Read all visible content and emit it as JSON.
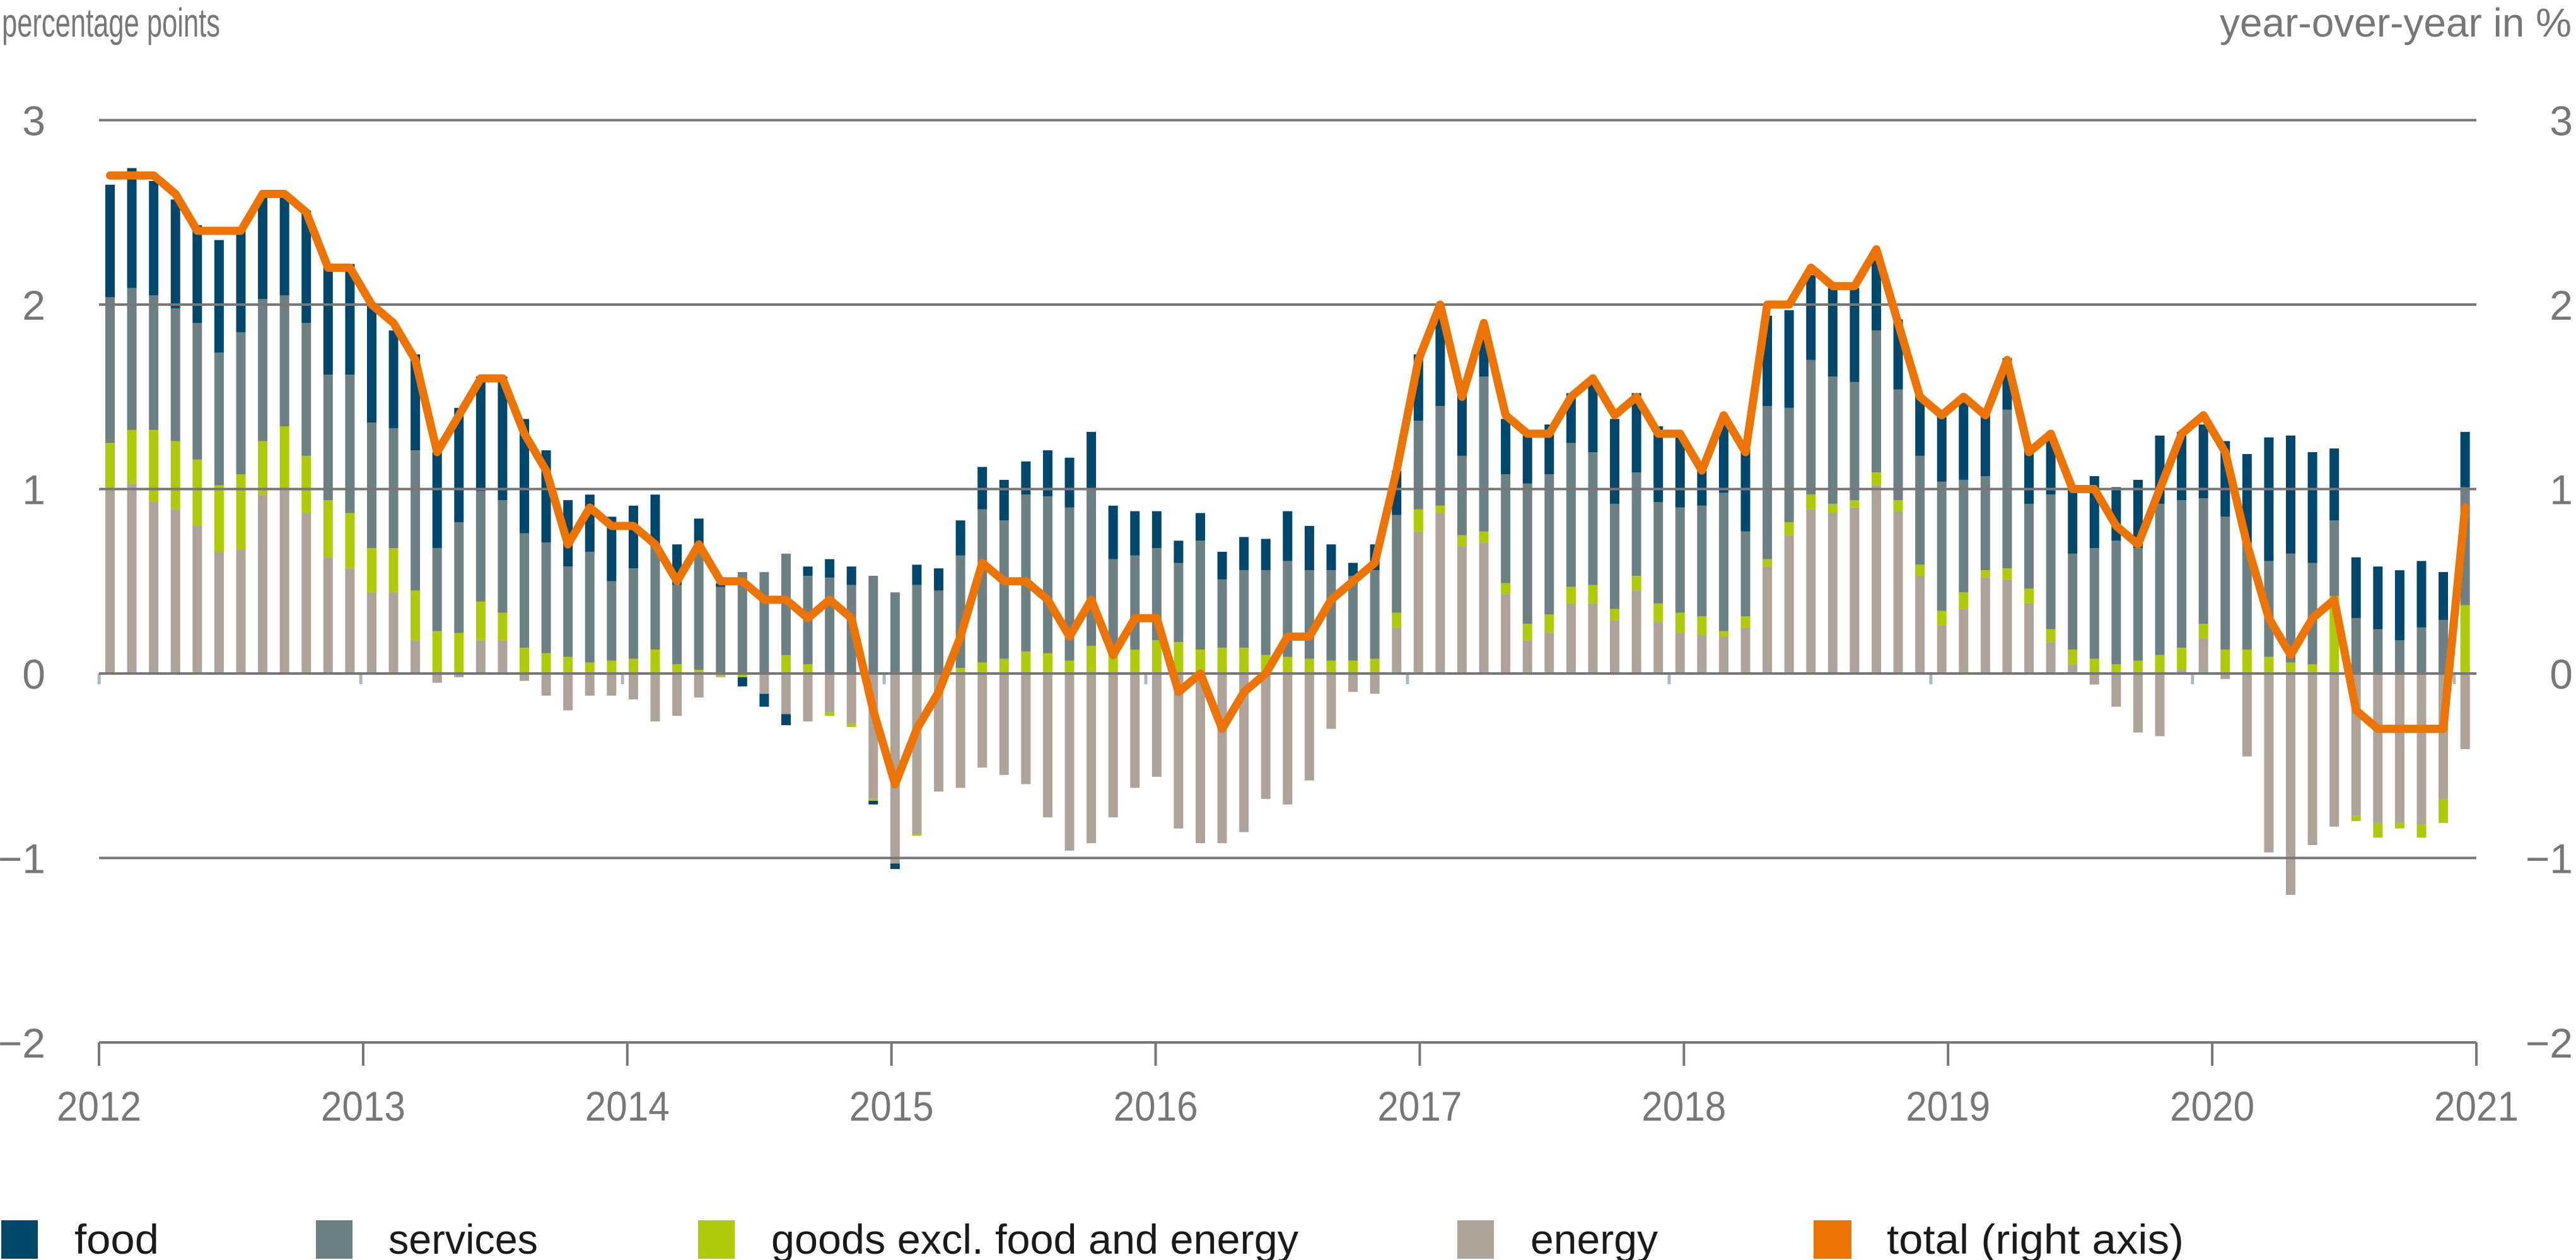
{
  "chart_data": {
    "type": "bar",
    "stacked": true,
    "title": "",
    "ylabel_left": "percentage points",
    "ylabel_right": "year-over-year in %",
    "ylim": [
      -2,
      3
    ],
    "ylim_right": [
      -2,
      3
    ],
    "ytick_values": [
      3,
      2,
      1,
      0,
      -1,
      -2
    ],
    "yticks_left": [
      "3",
      "2",
      "1",
      "0",
      "−1",
      "−2"
    ],
    "yticks_right": [
      "3",
      "2",
      "1",
      "0",
      "−1",
      "−2"
    ],
    "xlim": [
      2012,
      2021
    ],
    "xticks": [
      "2012",
      "2013",
      "2014",
      "2015",
      "2016",
      "2017",
      "2018",
      "2019",
      "2020",
      "2021"
    ],
    "grid": true,
    "legend_position": "bottom",
    "x": [
      2012.042,
      2012.125,
      2012.208,
      2012.292,
      2012.375,
      2012.458,
      2012.542,
      2012.625,
      2012.708,
      2012.792,
      2012.875,
      2012.958,
      2013.042,
      2013.125,
      2013.208,
      2013.292,
      2013.375,
      2013.458,
      2013.542,
      2013.625,
      2013.708,
      2013.792,
      2013.875,
      2013.958,
      2014.042,
      2014.125,
      2014.208,
      2014.292,
      2014.375,
      2014.458,
      2014.542,
      2014.625,
      2014.708,
      2014.792,
      2014.875,
      2014.958,
      2015.042,
      2015.125,
      2015.208,
      2015.292,
      2015.375,
      2015.458,
      2015.542,
      2015.625,
      2015.708,
      2015.792,
      2015.875,
      2015.958,
      2016.042,
      2016.125,
      2016.208,
      2016.292,
      2016.375,
      2016.458,
      2016.542,
      2016.625,
      2016.708,
      2016.792,
      2016.875,
      2016.958,
      2017.042,
      2017.125,
      2017.208,
      2017.292,
      2017.375,
      2017.458,
      2017.542,
      2017.625,
      2017.708,
      2017.792,
      2017.875,
      2017.958,
      2018.042,
      2018.125,
      2018.208,
      2018.292,
      2018.375,
      2018.458,
      2018.542,
      2018.625,
      2018.708,
      2018.792,
      2018.875,
      2018.958,
      2019.042,
      2019.125,
      2019.208,
      2019.292,
      2019.375,
      2019.458,
      2019.542,
      2019.625,
      2019.708,
      2019.792,
      2019.875,
      2019.958,
      2020.042,
      2020.125,
      2020.208,
      2020.292,
      2020.375,
      2020.458,
      2020.542,
      2020.625,
      2020.708,
      2020.792,
      2020.875,
      2020.958,
      2021.042
    ],
    "series": [
      {
        "name": "food",
        "type": "bar",
        "color": "#00476b",
        "values": [
          0.61,
          0.65,
          0.62,
          0.59,
          0.53,
          0.61,
          0.55,
          0.57,
          0.53,
          0.61,
          0.6,
          0.6,
          0.64,
          0.53,
          0.52,
          0.52,
          0.62,
          0.62,
          0.67,
          0.62,
          0.5,
          0.36,
          0.31,
          0.35,
          0.34,
          0.28,
          0.22,
          0.15,
          0.02,
          -0.05,
          -0.07,
          -0.06,
          0.05,
          0.1,
          0.1,
          -0.02,
          -0.03,
          0.11,
          0.12,
          0.19,
          0.23,
          0.22,
          0.18,
          0.25,
          0.27,
          0.31,
          0.29,
          0.24,
          0.2,
          0.12,
          0.15,
          0.15,
          0.18,
          0.17,
          0.27,
          0.24,
          0.14,
          0.07,
          0.14,
          0.24,
          0.36,
          0.5,
          0.34,
          0.27,
          0.3,
          0.26,
          0.27,
          0.27,
          0.37,
          0.46,
          0.43,
          0.41,
          0.39,
          0.19,
          0.37,
          0.46,
          0.49,
          0.53,
          0.46,
          0.48,
          0.51,
          0.38,
          0.38,
          0.33,
          0.36,
          0.43,
          0.33,
          0.28,
          0.3,
          0.3,
          0.37,
          0.39,
          0.29,
          0.37,
          0.37,
          0.37,
          0.4,
          0.41,
          0.48,
          0.67,
          0.64,
          0.6,
          0.39,
          0.33,
          0.34,
          0.38,
          0.36,
          0.26,
          0.3
        ]
      },
      {
        "name": "services",
        "type": "bar",
        "color": "#6d8084",
        "values": [
          0.79,
          0.77,
          0.73,
          0.72,
          0.74,
          0.72,
          0.77,
          0.77,
          0.71,
          0.72,
          0.68,
          0.75,
          0.68,
          0.65,
          0.76,
          0.45,
          0.6,
          0.6,
          0.61,
          0.62,
          0.6,
          0.49,
          0.6,
          0.43,
          0.49,
          0.56,
          0.43,
          0.67,
          0.47,
          0.55,
          0.55,
          0.55,
          0.48,
          0.52,
          0.48,
          0.53,
          0.44,
          0.48,
          0.45,
          0.61,
          0.83,
          0.75,
          0.85,
          0.85,
          0.83,
          0.85,
          0.52,
          0.51,
          0.5,
          0.43,
          0.59,
          0.37,
          0.42,
          0.46,
          0.52,
          0.48,
          0.49,
          0.46,
          0.48,
          0.53,
          0.48,
          0.54,
          0.43,
          0.84,
          0.59,
          0.76,
          0.76,
          0.78,
          0.72,
          0.57,
          0.56,
          0.55,
          0.57,
          0.6,
          0.75,
          0.46,
          0.83,
          0.62,
          0.73,
          0.69,
          0.64,
          0.77,
          0.6,
          0.59,
          0.7,
          0.61,
          0.51,
          0.86,
          0.46,
          0.73,
          0.52,
          0.6,
          0.67,
          0.61,
          0.82,
          0.8,
          0.68,
          0.72,
          0.58,
          0.52,
          0.59,
          0.55,
          0.41,
          0.3,
          0.24,
          0.18,
          0.25,
          0.29,
          0.64
        ]
      },
      {
        "name": "goods excl. food and energy",
        "type": "bar",
        "color": "#afca0b",
        "values": [
          0.25,
          0.29,
          0.39,
          0.37,
          0.36,
          0.36,
          0.41,
          0.29,
          0.34,
          0.31,
          0.31,
          0.3,
          0.24,
          0.24,
          0.27,
          0.23,
          0.22,
          0.21,
          0.15,
          0.14,
          0.11,
          0.09,
          0.06,
          0.07,
          0.08,
          0.13,
          0.05,
          0.02,
          -0.01,
          -0.02,
          0.0,
          0.1,
          0.05,
          -0.02,
          -0.02,
          -0.01,
          0.0,
          -0.01,
          0.0,
          0.03,
          0.06,
          0.08,
          0.12,
          0.11,
          0.07,
          0.15,
          0.1,
          0.13,
          0.18,
          0.17,
          0.13,
          0.14,
          0.14,
          0.1,
          0.09,
          0.08,
          0.07,
          0.07,
          0.08,
          0.08,
          0.12,
          0.04,
          0.06,
          0.06,
          0.06,
          0.09,
          0.1,
          0.09,
          0.1,
          0.06,
          0.08,
          0.1,
          0.11,
          0.1,
          0.03,
          0.06,
          0.04,
          0.07,
          0.08,
          0.05,
          0.04,
          0.07,
          0.06,
          0.06,
          0.08,
          0.09,
          0.04,
          0.06,
          0.08,
          0.07,
          0.08,
          0.08,
          0.05,
          0.07,
          0.1,
          0.12,
          0.08,
          0.13,
          0.13,
          0.09,
          0.06,
          0.05,
          0.42,
          -0.03,
          -0.08,
          -0.03,
          -0.07,
          -0.13,
          0.37
        ]
      },
      {
        "name": "energy",
        "type": "bar",
        "color": "#ada399",
        "values": [
          1.0,
          1.03,
          0.93,
          0.89,
          0.8,
          0.66,
          0.67,
          0.97,
          1.0,
          0.87,
          0.63,
          0.57,
          0.44,
          0.44,
          0.18,
          -0.05,
          -0.02,
          0.18,
          0.18,
          -0.04,
          -0.12,
          -0.2,
          -0.12,
          -0.12,
          -0.14,
          -0.26,
          -0.23,
          -0.13,
          -0.01,
          0.0,
          -0.11,
          -0.22,
          -0.26,
          -0.21,
          -0.27,
          -0.68,
          -1.03,
          -0.87,
          -0.64,
          -0.62,
          -0.51,
          -0.55,
          -0.6,
          -0.78,
          -0.96,
          -0.92,
          -0.78,
          -0.62,
          -0.56,
          -0.84,
          -0.92,
          -0.92,
          -0.86,
          -0.68,
          -0.71,
          -0.58,
          -0.3,
          -0.1,
          -0.11,
          0.25,
          0.77,
          0.87,
          0.69,
          0.71,
          0.43,
          0.18,
          0.22,
          0.38,
          0.38,
          0.29,
          0.45,
          0.28,
          0.22,
          0.21,
          0.2,
          0.25,
          0.58,
          0.75,
          0.89,
          0.87,
          0.9,
          1.02,
          0.88,
          0.53,
          0.26,
          0.35,
          0.52,
          0.51,
          0.38,
          0.17,
          0.05,
          -0.06,
          -0.18,
          -0.32,
          -0.34,
          0.02,
          0.19,
          -0.03,
          -0.45,
          -0.97,
          -1.2,
          -0.93,
          -0.83,
          -0.77,
          -0.81,
          -0.81,
          -0.82,
          -0.68,
          -0.41
        ]
      },
      {
        "name": "total (right axis)",
        "type": "line",
        "axis": "right",
        "color": "#ec7405",
        "values": [
          2.7,
          2.7,
          2.7,
          2.6,
          2.4,
          2.4,
          2.4,
          2.6,
          2.6,
          2.5,
          2.2,
          2.2,
          2.0,
          1.9,
          1.7,
          1.2,
          1.4,
          1.6,
          1.6,
          1.3,
          1.1,
          0.7,
          0.9,
          0.8,
          0.8,
          0.7,
          0.5,
          0.7,
          0.5,
          0.5,
          0.4,
          0.4,
          0.3,
          0.4,
          0.3,
          -0.2,
          -0.6,
          -0.3,
          -0.1,
          0.2,
          0.6,
          0.5,
          0.5,
          0.4,
          0.2,
          0.4,
          0.1,
          0.3,
          0.3,
          -0.1,
          0.0,
          -0.3,
          -0.1,
          0.0,
          0.2,
          0.2,
          0.4,
          0.5,
          0.6,
          1.1,
          1.7,
          2.0,
          1.5,
          1.9,
          1.4,
          1.3,
          1.3,
          1.5,
          1.6,
          1.4,
          1.5,
          1.3,
          1.3,
          1.1,
          1.4,
          1.2,
          2.0,
          2.0,
          2.2,
          2.1,
          2.1,
          2.3,
          1.9,
          1.5,
          1.4,
          1.5,
          1.4,
          1.7,
          1.2,
          1.3,
          1.0,
          1.0,
          0.8,
          0.7,
          1.0,
          1.3,
          1.4,
          1.2,
          0.7,
          0.3,
          0.1,
          0.3,
          0.4,
          -0.2,
          -0.3,
          -0.3,
          -0.3,
          -0.3,
          0.9
        ]
      }
    ],
    "axis_color": "#777777",
    "zero_tick_color": "#a9b9bf",
    "text_color_axis": "#777777",
    "text_color_legend": "#1a1a1a"
  }
}
